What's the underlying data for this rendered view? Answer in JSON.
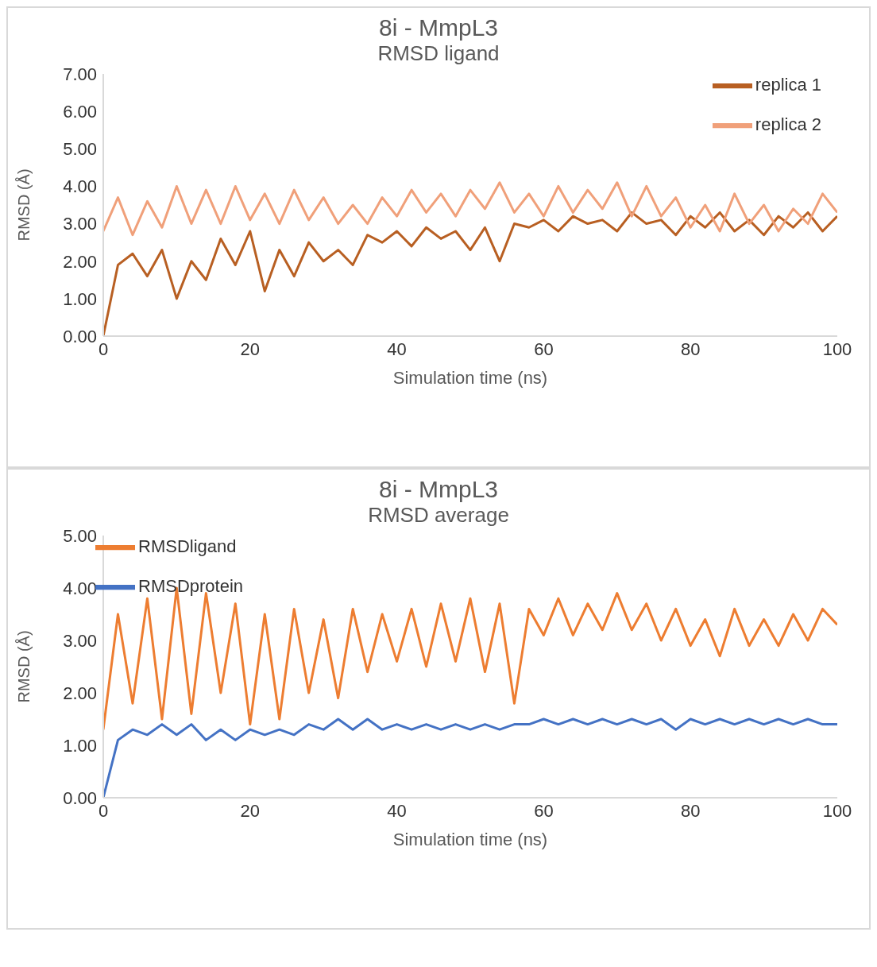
{
  "chart_data": [
    {
      "type": "line",
      "title": "8i - MmpL3",
      "subtitle": "RMSD ligand",
      "xlabel": "Simulation time (ns)",
      "ylabel": "RMSD (Å)",
      "legend": "top right",
      "marker": "none",
      "grid": false,
      "x": [
        0,
        2,
        4,
        6,
        8,
        10,
        12,
        14,
        16,
        18,
        20,
        22,
        24,
        26,
        28,
        30,
        32,
        34,
        36,
        38,
        40,
        42,
        44,
        46,
        48,
        50,
        52,
        54,
        56,
        58,
        60,
        62,
        64,
        66,
        68,
        70,
        72,
        74,
        76,
        78,
        80,
        82,
        84,
        86,
        88,
        90,
        92,
        94,
        96,
        98,
        100
      ],
      "xlim": [
        0,
        100
      ],
      "xticks": [
        0,
        20,
        40,
        60,
        80,
        100
      ],
      "ylim": [
        0,
        7
      ],
      "yticks": [
        {
          "value": 0,
          "label": "0.00"
        },
        {
          "value": 1,
          "label": "1.00"
        },
        {
          "value": 2,
          "label": "2.00"
        },
        {
          "value": 3,
          "label": "3.00"
        },
        {
          "value": 4,
          "label": "4.00"
        },
        {
          "value": 5,
          "label": "5.00"
        },
        {
          "value": 6,
          "label": "6.00"
        },
        {
          "value": 7,
          "label": "7.00"
        }
      ],
      "series": [
        {
          "name": "replica 1",
          "color": "#b85f22",
          "values": [
            0,
            1.9,
            2.2,
            1.6,
            2.3,
            1.0,
            2.0,
            1.5,
            2.6,
            1.9,
            2.8,
            1.2,
            2.3,
            1.6,
            2.5,
            2.0,
            2.3,
            1.9,
            2.7,
            2.5,
            2.8,
            2.4,
            2.9,
            2.6,
            2.8,
            2.3,
            2.9,
            2.0,
            3.0,
            2.9,
            3.1,
            2.8,
            3.2,
            3.0,
            3.1,
            2.8,
            3.3,
            3.0,
            3.1,
            2.7,
            3.2,
            2.9,
            3.3,
            2.8,
            3.1,
            2.7,
            3.2,
            2.9,
            3.3,
            2.8,
            3.2
          ]
        },
        {
          "name": "replica 2",
          "color": "#f0a07a",
          "values": [
            2.8,
            3.7,
            2.7,
            3.6,
            2.9,
            4.0,
            3.0,
            3.9,
            3.0,
            4.0,
            3.1,
            3.8,
            3.0,
            3.9,
            3.1,
            3.7,
            3.0,
            3.5,
            3.0,
            3.7,
            3.2,
            3.9,
            3.3,
            3.8,
            3.2,
            3.9,
            3.4,
            4.1,
            3.3,
            3.8,
            3.2,
            4.0,
            3.3,
            3.9,
            3.4,
            4.1,
            3.2,
            4.0,
            3.2,
            3.7,
            2.9,
            3.5,
            2.8,
            3.8,
            3.0,
            3.5,
            2.8,
            3.4,
            3.0,
            3.8,
            3.3
          ]
        }
      ]
    },
    {
      "type": "line",
      "title": "8i - MmpL3",
      "subtitle": "RMSD average",
      "xlabel": "Simulation time (ns)",
      "ylabel": "RMSD (Å)",
      "legend": "top left",
      "marker": "none",
      "grid": false,
      "x": [
        0,
        2,
        4,
        6,
        8,
        10,
        12,
        14,
        16,
        18,
        20,
        22,
        24,
        26,
        28,
        30,
        32,
        34,
        36,
        38,
        40,
        42,
        44,
        46,
        48,
        50,
        52,
        54,
        56,
        58,
        60,
        62,
        64,
        66,
        68,
        70,
        72,
        74,
        76,
        78,
        80,
        82,
        84,
        86,
        88,
        90,
        92,
        94,
        96,
        98,
        100
      ],
      "xlim": [
        0,
        100
      ],
      "xticks": [
        0,
        20,
        40,
        60,
        80,
        100
      ],
      "ylim": [
        0,
        5
      ],
      "yticks": [
        {
          "value": 0,
          "label": "0.00"
        },
        {
          "value": 1,
          "label": "1.00"
        },
        {
          "value": 2,
          "label": "2.00"
        },
        {
          "value": 3,
          "label": "3.00"
        },
        {
          "value": 4,
          "label": "4.00"
        },
        {
          "value": 5,
          "label": "5.00"
        }
      ],
      "series": [
        {
          "name": "RMSDligand",
          "color": "#ed7d31",
          "values": [
            1.3,
            3.5,
            1.8,
            3.8,
            1.5,
            4.0,
            1.6,
            3.9,
            2.0,
            3.7,
            1.4,
            3.5,
            1.5,
            3.6,
            2.0,
            3.4,
            1.9,
            3.6,
            2.4,
            3.5,
            2.6,
            3.6,
            2.5,
            3.7,
            2.6,
            3.8,
            2.4,
            3.7,
            1.8,
            3.6,
            3.1,
            3.8,
            3.1,
            3.7,
            3.2,
            3.9,
            3.2,
            3.7,
            3.0,
            3.6,
            2.9,
            3.4,
            2.7,
            3.6,
            2.9,
            3.4,
            2.9,
            3.5,
            3.0,
            3.6,
            3.3
          ]
        },
        {
          "name": "RMSDprotein",
          "color": "#4472c4",
          "values": [
            0,
            1.1,
            1.3,
            1.2,
            1.4,
            1.2,
            1.4,
            1.1,
            1.3,
            1.1,
            1.3,
            1.2,
            1.3,
            1.2,
            1.4,
            1.3,
            1.5,
            1.3,
            1.5,
            1.3,
            1.4,
            1.3,
            1.4,
            1.3,
            1.4,
            1.3,
            1.4,
            1.3,
            1.4,
            1.4,
            1.5,
            1.4,
            1.5,
            1.4,
            1.5,
            1.4,
            1.5,
            1.4,
            1.5,
            1.3,
            1.5,
            1.4,
            1.5,
            1.4,
            1.5,
            1.4,
            1.5,
            1.4,
            1.5,
            1.4,
            1.4
          ]
        }
      ]
    }
  ]
}
